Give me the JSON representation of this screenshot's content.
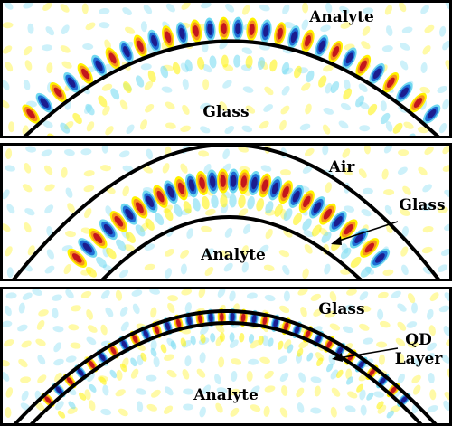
{
  "panels": [
    {
      "id": "top",
      "labels": {
        "outer": "Analyte",
        "inner": "Glass"
      },
      "style": "single-arc"
    },
    {
      "id": "middle",
      "labels": {
        "outer": "Air",
        "shell": "Glass",
        "inner": "Analyte"
      },
      "style": "glass-shell"
    },
    {
      "id": "bottom",
      "labels": {
        "outer": "Glass",
        "layer_line1": "QD",
        "layer_line2": "Layer",
        "inner": "Analyte"
      },
      "style": "thin-layer"
    }
  ],
  "colors": {
    "frame": "#000000",
    "background": "#ffffff",
    "positive_strong": "#c4161c",
    "positive_mid": "#f7941d",
    "positive_weak": "#fff200",
    "negative_strong": "#1b1d8f",
    "negative_mid": "#1f6fd6",
    "negative_weak": "#6fd8f0"
  }
}
